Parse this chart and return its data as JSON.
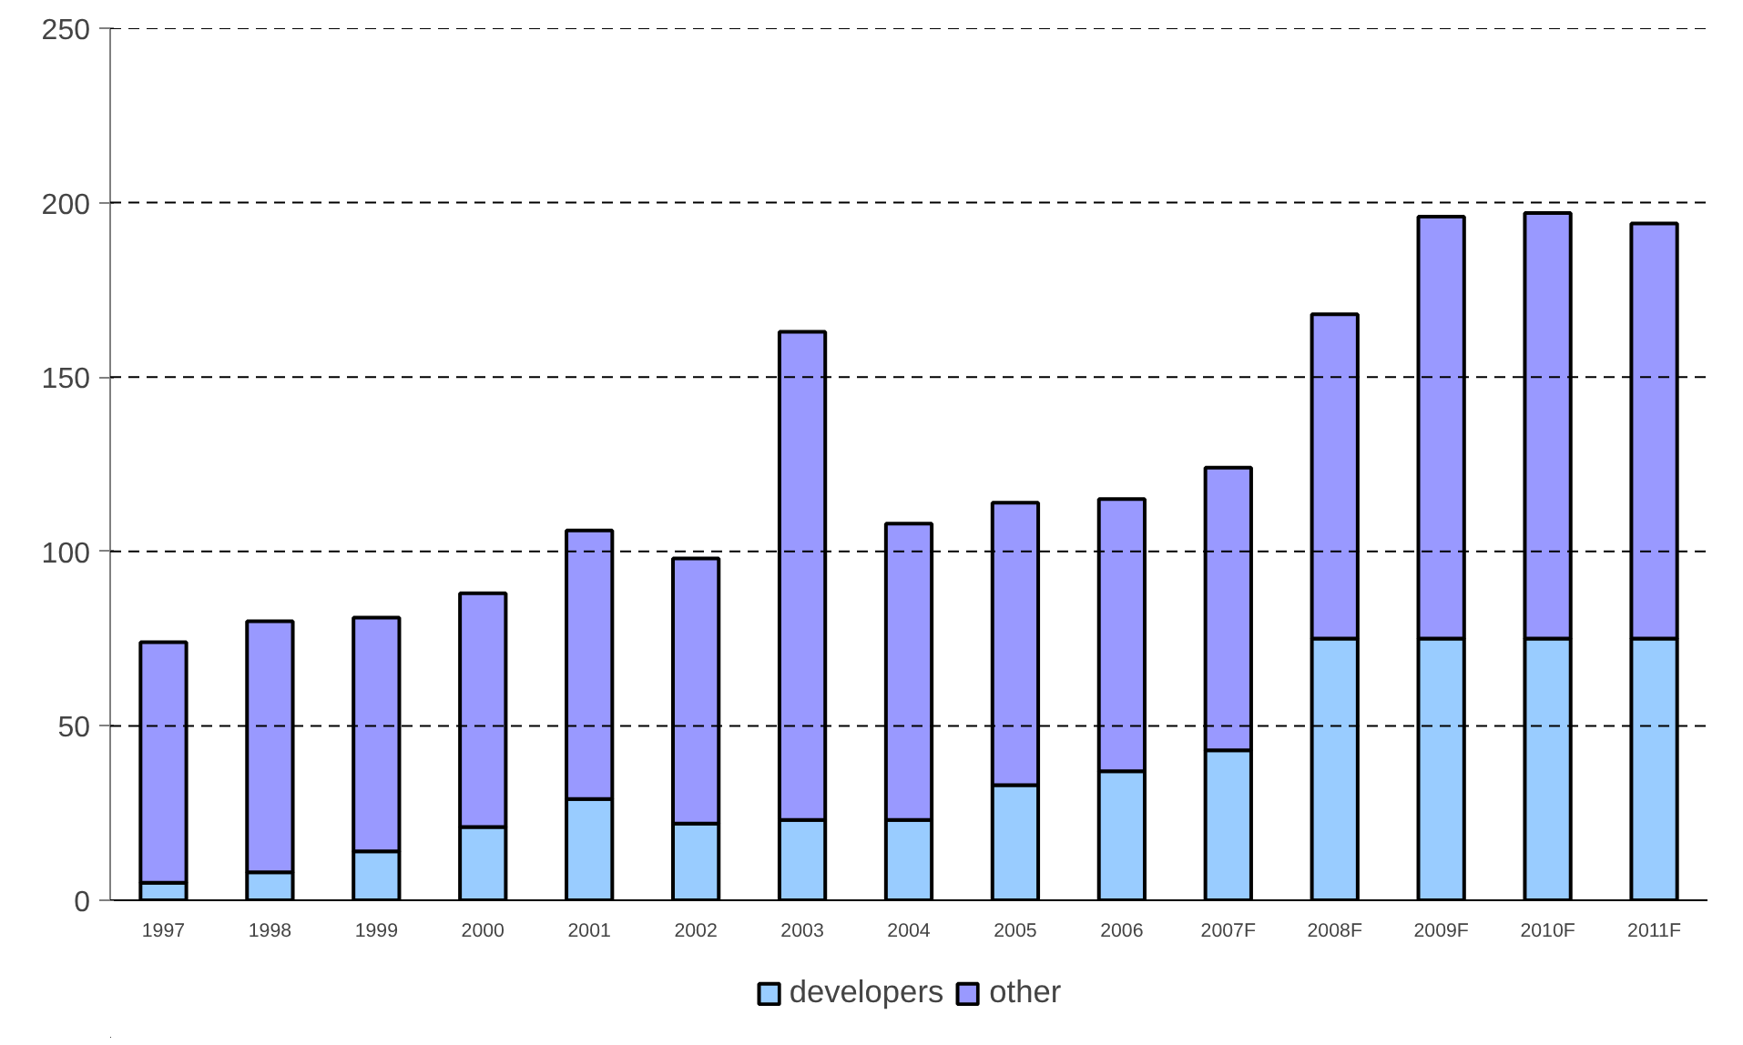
{
  "chart_data": {
    "type": "bar",
    "stacked": true,
    "categories": [
      "1997",
      "1998",
      "1999",
      "2000",
      "2001",
      "2002",
      "2003",
      "2004",
      "2005",
      "2006",
      "2007F",
      "2008F",
      "2009F",
      "2010F",
      "2011F"
    ],
    "series": [
      {
        "name": "developers",
        "color": "#99ccff",
        "values": [
          5,
          8,
          14,
          21,
          29,
          22,
          23,
          23,
          33,
          37,
          43,
          75,
          75,
          75,
          75
        ]
      },
      {
        "name": "other",
        "color": "#9999ff",
        "values": [
          69,
          72,
          67,
          67,
          77,
          76,
          140,
          85,
          81,
          78,
          81,
          93,
          121,
          122,
          119
        ]
      }
    ],
    "ylim": [
      0,
      250
    ],
    "yticks": [
      0,
      50,
      100,
      150,
      200,
      250
    ],
    "grid": "y",
    "legend": "bottom"
  }
}
